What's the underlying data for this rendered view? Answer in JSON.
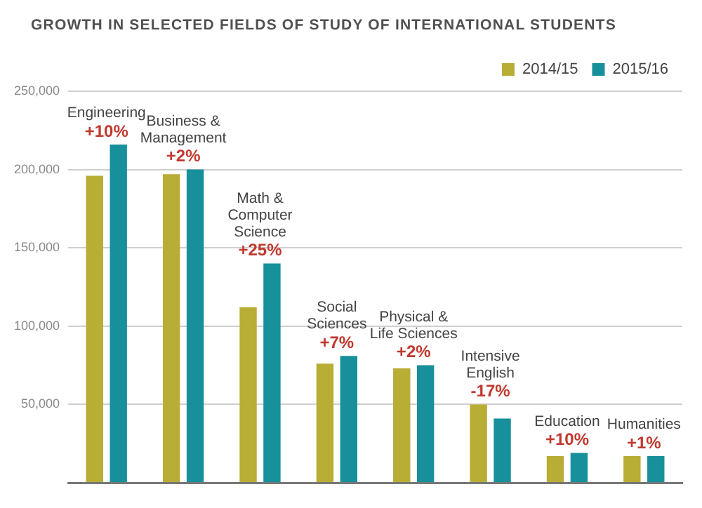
{
  "chart_data": {
    "type": "bar",
    "title": "GROWTH IN SELECTED FIELDS OF STUDY OF INTERNATIONAL STUDENTS",
    "categories": [
      "Engineering",
      "Business & Management",
      "Math & Computer Science",
      "Social Sciences",
      "Physical & Life Sciences",
      "Intensive English",
      "Education",
      "Humanities"
    ],
    "series": [
      {
        "name": "2014/15",
        "color": "#b8ad35",
        "values": [
          196000,
          197000,
          112000,
          76000,
          73000,
          50000,
          17000,
          17000
        ]
      },
      {
        "name": "2015/16",
        "color": "#17909c",
        "values": [
          216000,
          200000,
          140000,
          81000,
          75000,
          41000,
          19000,
          17000
        ]
      }
    ],
    "ylim": [
      0,
      250000
    ],
    "yticks": [
      {
        "value": 0,
        "label": null
      },
      {
        "value": 50000,
        "label": "50,000"
      },
      {
        "value": 100000,
        "label": "100,000"
      },
      {
        "value": 150000,
        "label": "150,000"
      },
      {
        "value": 200000,
        "label": "200,000"
      },
      {
        "value": 250000,
        "label": "250,000"
      }
    ],
    "annotations": [
      {
        "text": "+10%",
        "x": "Engineering",
        "y": 216000
      },
      {
        "text": "+2%",
        "x": "Business & Management",
        "y": 200000
      },
      {
        "text": "+25%",
        "x": "Math & Computer Science",
        "y": 140000
      },
      {
        "text": "+7%",
        "x": "Social Sciences",
        "y": 81000
      },
      {
        "text": "+2%",
        "x": "Physical & Life Sciences",
        "y": 75000
      },
      {
        "text": "-17%",
        "x": "Intensive English",
        "y": 50000
      },
      {
        "text": "+10%",
        "x": "Education",
        "y": 19000
      },
      {
        "text": "+1%",
        "x": "Humanities",
        "y": 17000
      }
    ],
    "grid": "y",
    "legend": "top right"
  }
}
